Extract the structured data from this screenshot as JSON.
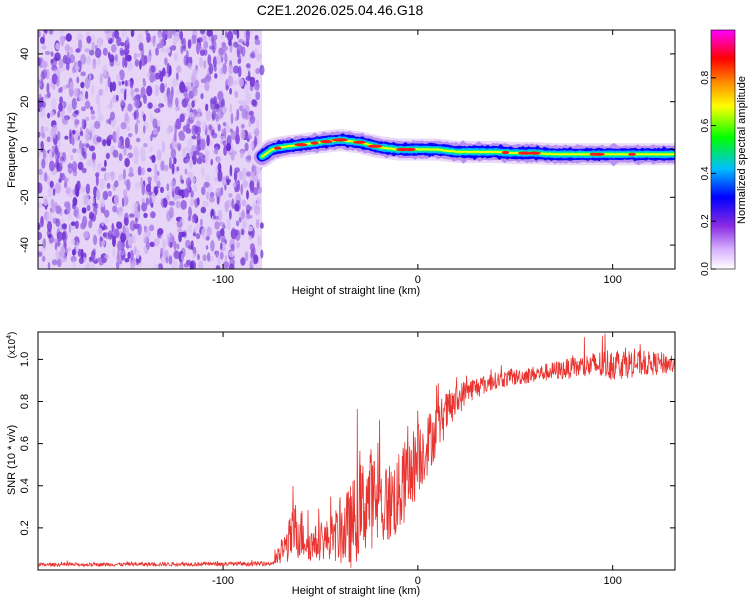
{
  "chart_data": [
    {
      "type": "heatmap",
      "title": "C2E1.2026.025.04.46.G18",
      "xlabel": "Height of straight line (km)",
      "ylabel": "Frequency (Hz)",
      "xlim": [
        -195,
        132
      ],
      "ylim": [
        -50,
        50
      ],
      "xticks": [
        -100,
        0,
        100
      ],
      "yticks": [
        -40,
        -20,
        0,
        20,
        40
      ],
      "noise_region_x": [
        -195,
        -80
      ],
      "signal_trace": {
        "x": [
          -80,
          -75,
          -70,
          -60,
          -50,
          -40,
          -30,
          -20,
          -10,
          0,
          10,
          20,
          30,
          40,
          50,
          60,
          70,
          80,
          90,
          100,
          110,
          120,
          132
        ],
        "y": [
          -3,
          0,
          1,
          2,
          3,
          4,
          3,
          1,
          0,
          0,
          0,
          -1,
          -1,
          -1,
          -1.5,
          -1.5,
          -2,
          -2,
          -2,
          -2,
          -2,
          -2,
          -2
        ]
      },
      "colorbar": {
        "label": "Normalized spectral amplitude",
        "range": [
          0,
          1
        ],
        "ticks": [
          "0.0",
          "0.2",
          "0.4",
          "0.6",
          "0.8"
        ],
        "colormap": [
          "#ffffff",
          "#8a2be2",
          "#0000ff",
          "#00bfff",
          "#00ff00",
          "#ffff00",
          "#ff8c00",
          "#ff0000",
          "#ff00ff"
        ]
      }
    },
    {
      "type": "line",
      "xlabel": "Height of straight line (km)",
      "ylabel": "SNR (10 * v/v)",
      "y_multiplier": "(x10",
      "y_multiplier_exp": "4",
      "y_multiplier_close": ")",
      "xlim": [
        -195,
        132
      ],
      "ylim": [
        0,
        1.13
      ],
      "xticks": [
        -100,
        0,
        100
      ],
      "yticks": [
        0.2,
        0.4,
        0.6,
        0.8,
        1.0
      ],
      "ytick_labels": [
        "0.2",
        "0.4",
        "0.6",
        "0.8",
        "1.0"
      ],
      "color": "#e8332f",
      "envelope": {
        "x": [
          -195,
          -75,
          -70,
          -62,
          -55,
          -45,
          -35,
          -25,
          -18,
          -10,
          -5,
          5,
          15,
          25,
          40,
          60,
          80,
          100,
          115,
          132
        ],
        "mean": [
          0.025,
          0.03,
          0.08,
          0.2,
          0.12,
          0.15,
          0.2,
          0.35,
          0.3,
          0.35,
          0.45,
          0.6,
          0.75,
          0.85,
          0.9,
          0.93,
          0.96,
          0.98,
          0.98,
          0.98
        ],
        "spread": [
          0.008,
          0.01,
          0.06,
          0.15,
          0.08,
          0.1,
          0.2,
          0.25,
          0.2,
          0.2,
          0.2,
          0.15,
          0.1,
          0.06,
          0.04,
          0.04,
          0.05,
          0.08,
          0.06,
          0.05
        ]
      }
    }
  ]
}
